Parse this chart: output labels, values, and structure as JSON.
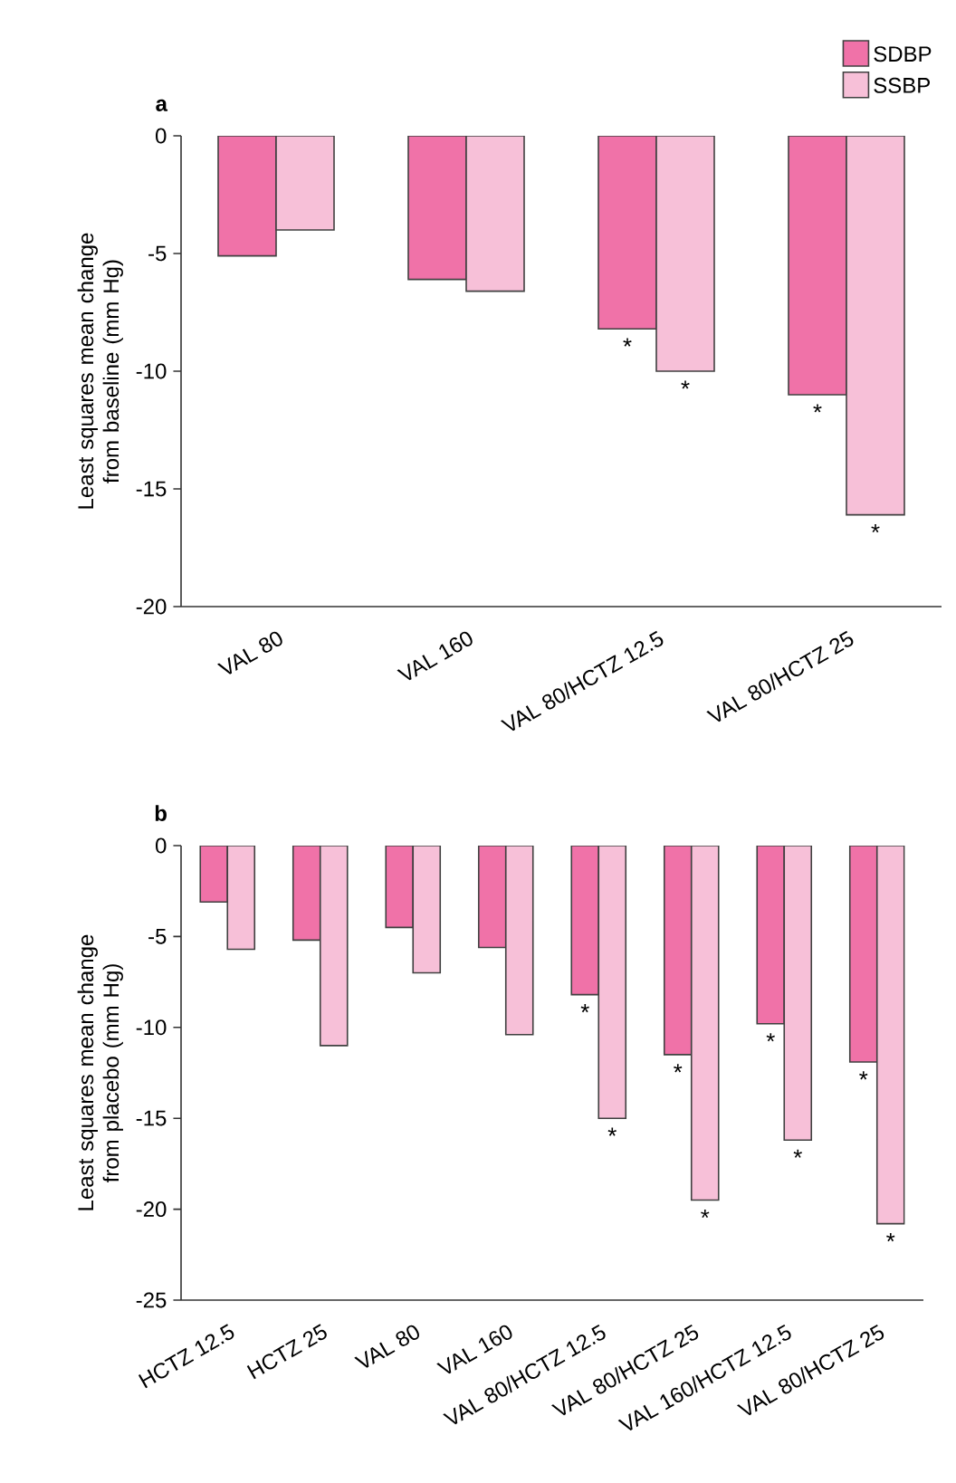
{
  "chart_data": [
    {
      "type": "bar",
      "title": "a",
      "ylabel": "Least squares mean change from baseline (mm Hg)",
      "categories": [
        "VAL 80",
        "VAL 160",
        "VAL 80/HCTZ 12.5",
        "VAL 80/HCTZ 25"
      ],
      "series": [
        {
          "name": "SDBP",
          "color": "#f072a8",
          "values": [
            -5.1,
            -6.1,
            -8.2,
            -11.0
          ]
        },
        {
          "name": "SSBP",
          "color": "#f7c0d8",
          "values": [
            -4.0,
            -6.6,
            -10.0,
            -16.1
          ]
        }
      ],
      "ylim": [
        -20,
        0
      ],
      "yticks": [
        -20,
        -15,
        -10,
        -5,
        0
      ],
      "legend": "top right",
      "annotations": [
        {
          "text": "*",
          "x": "VAL 80/HCTZ 12.5",
          "y": -8.2
        },
        {
          "text": "*",
          "x": "VAL 80/HCTZ 12.5",
          "y": -10.0
        },
        {
          "text": "*",
          "x": "VAL 80/HCTZ 25",
          "y": -11.0
        },
        {
          "text": "*",
          "x": "VAL 80/HCTZ 25",
          "y": -16.1
        }
      ]
    },
    {
      "type": "bar",
      "title": "b",
      "ylabel": "Least squares mean change from placebo (mm Hg)",
      "categories": [
        "HCTZ 12.5",
        "HCTZ 25",
        "VAL 80",
        "VAL 160",
        "VAL 80/HCTZ 12.5",
        "VAL 80/HCTZ 25",
        "VAL 160/HCTZ 12.5",
        "VAL 80/HCTZ 25"
      ],
      "series": [
        {
          "color": "#f072a8",
          "values": [
            -3.1,
            -5.2,
            -4.5,
            -5.6,
            -8.2,
            -11.5,
            -9.8,
            -11.9
          ]
        },
        {
          "color": "#f7c0d8",
          "values": [
            -5.7,
            -11.0,
            -7.0,
            -10.4,
            -15.0,
            -19.5,
            -16.2,
            -20.8
          ]
        }
      ],
      "ylim": [
        -25,
        0
      ],
      "yticks": [
        -25,
        -20,
        -15,
        -10,
        -5,
        0
      ],
      "annotations": [
        {
          "text": "*",
          "x": "VAL 80/HCTZ 12.5",
          "y": -8.2
        },
        {
          "text": "*",
          "x": "VAL 80/HCTZ 12.5",
          "y": -15.0
        },
        {
          "text": "*",
          "x": "VAL 80/HCTZ 25",
          "y": -11.5
        },
        {
          "text": "*",
          "x": "VAL 80/HCTZ 25",
          "y": -19.5
        },
        {
          "text": "*",
          "x": "VAL 160/HCTZ 12.5",
          "y": -9.8
        },
        {
          "text": "*",
          "x": "VAL 160/HCTZ 12.5",
          "y": -16.2
        },
        {
          "text": "*",
          "y": -11.9
        },
        {
          "text": "*",
          "y": -20.8
        }
      ]
    }
  ]
}
